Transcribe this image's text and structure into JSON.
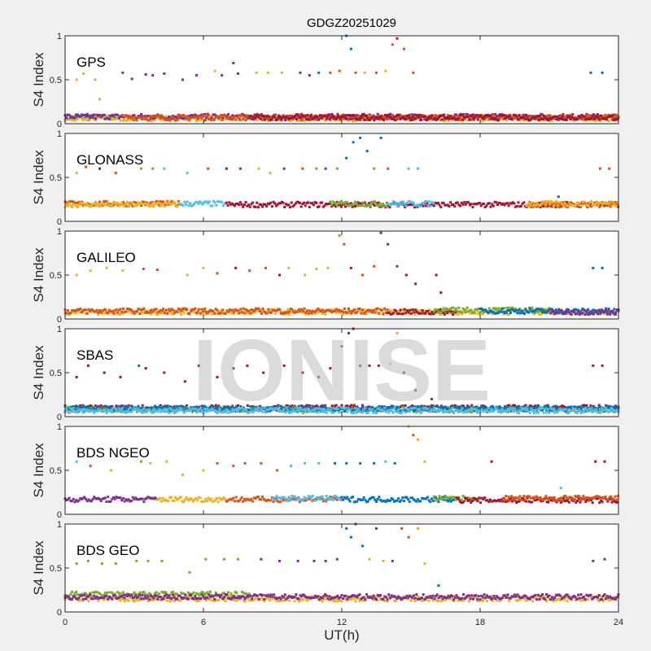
{
  "chart_data": {
    "type": "scatter",
    "title": "GDGZ20251029",
    "xlabel": "UT(h)",
    "ylabel": "S4 Index",
    "xlim": [
      0,
      24
    ],
    "ylim": [
      0,
      1
    ],
    "xticks": [
      "0",
      "6",
      "12",
      "18",
      "24"
    ],
    "yticks": [
      "0",
      "0.5",
      "1"
    ],
    "grid": false,
    "watermark": "IONISE",
    "palette": [
      "#0072BD",
      "#D95319",
      "#EDB120",
      "#7E2F8E",
      "#77AC30",
      "#4DBEEE",
      "#A2142F"
    ],
    "panels": [
      {
        "label": "GPS",
        "baseline": [
          [
            0,
            2.5,
            0.07,
            0
          ],
          [
            0,
            24,
            0.06,
            2
          ],
          [
            0,
            24,
            0.08,
            3
          ],
          [
            2.5,
            24,
            0.07,
            1
          ],
          [
            8,
            24,
            0.07,
            6
          ]
        ],
        "points": [
          [
            0.5,
            0.5,
            2
          ],
          [
            0.8,
            0.57,
            2
          ],
          [
            1.3,
            0.5,
            2
          ],
          [
            1.5,
            0.28,
            2
          ],
          [
            2.5,
            0.58,
            3
          ],
          [
            2.9,
            0.51,
            3
          ],
          [
            3.5,
            0.56,
            3
          ],
          [
            3.8,
            0.55,
            3
          ],
          [
            4.3,
            0.57,
            3
          ],
          [
            5.1,
            0.5,
            3
          ],
          [
            5.7,
            0.55,
            3
          ],
          [
            6.5,
            0.6,
            2
          ],
          [
            6.8,
            0.55,
            3
          ],
          [
            7.3,
            0.69,
            3
          ],
          [
            7.5,
            0.57,
            3
          ],
          [
            8.3,
            0.58,
            2
          ],
          [
            8.8,
            0.58,
            2
          ],
          [
            9.4,
            0.58,
            2
          ],
          [
            10.2,
            0.58,
            3
          ],
          [
            10.6,
            0.55,
            3
          ],
          [
            11.0,
            0.58,
            0
          ],
          [
            11.5,
            0.58,
            1
          ],
          [
            11.9,
            0.6,
            1
          ],
          [
            12.2,
            1.0,
            0
          ],
          [
            12.4,
            0.85,
            0
          ],
          [
            12.6,
            0.58,
            1
          ],
          [
            13.0,
            0.58,
            2
          ],
          [
            13.5,
            0.58,
            1
          ],
          [
            13.9,
            0.6,
            2
          ],
          [
            14.2,
            0.9,
            1
          ],
          [
            14.4,
            0.97,
            6
          ],
          [
            14.7,
            0.85,
            1
          ],
          [
            15.1,
            0.58,
            1
          ],
          [
            22.8,
            0.58,
            0
          ],
          [
            23.3,
            0.58,
            0
          ]
        ]
      },
      {
        "label": "GLONASS",
        "baseline": [
          [
            0,
            5,
            0.2,
            1
          ],
          [
            0,
            5,
            0.19,
            2
          ],
          [
            5,
            7,
            0.2,
            5
          ],
          [
            7,
            24,
            0.19,
            6
          ],
          [
            11.5,
            14,
            0.2,
            4
          ],
          [
            14,
            16,
            0.2,
            5
          ],
          [
            20,
            24,
            0.19,
            1
          ],
          [
            20,
            24,
            0.2,
            2
          ]
        ],
        "points": [
          [
            0.5,
            0.55,
            2
          ],
          [
            0.9,
            0.62,
            1
          ],
          [
            1.5,
            0.6,
            6
          ],
          [
            2.2,
            0.55,
            1
          ],
          [
            3.3,
            0.6,
            4
          ],
          [
            3.8,
            0.6,
            4
          ],
          [
            4.3,
            0.6,
            5
          ],
          [
            5.3,
            0.55,
            5
          ],
          [
            6.2,
            0.6,
            1
          ],
          [
            7.0,
            0.6,
            6
          ],
          [
            7.6,
            0.6,
            3
          ],
          [
            8.4,
            0.6,
            2
          ],
          [
            8.9,
            0.55,
            2
          ],
          [
            9.5,
            0.6,
            3
          ],
          [
            10.3,
            0.6,
            1
          ],
          [
            10.9,
            0.6,
            4
          ],
          [
            11.3,
            0.6,
            3
          ],
          [
            11.8,
            0.6,
            4
          ],
          [
            12.2,
            0.72,
            0
          ],
          [
            12.5,
            0.9,
            0
          ],
          [
            12.8,
            0.95,
            0
          ],
          [
            13.1,
            0.8,
            0
          ],
          [
            13.4,
            0.6,
            4
          ],
          [
            13.7,
            0.95,
            0
          ],
          [
            14.0,
            0.6,
            1
          ],
          [
            14.9,
            0.6,
            5
          ],
          [
            15.3,
            0.6,
            5
          ],
          [
            21.4,
            0.28,
            0
          ],
          [
            23.2,
            0.6,
            1
          ],
          [
            23.6,
            0.6,
            1
          ]
        ]
      },
      {
        "label": "GALILEO",
        "baseline": [
          [
            0,
            24,
            0.08,
            2
          ],
          [
            0,
            14,
            0.09,
            1
          ],
          [
            14,
            17,
            0.08,
            6
          ],
          [
            16,
            21,
            0.1,
            4
          ],
          [
            18,
            24,
            0.09,
            0
          ],
          [
            21,
            24,
            0.08,
            3
          ]
        ],
        "points": [
          [
            0.5,
            0.5,
            2
          ],
          [
            1.1,
            0.55,
            2
          ],
          [
            1.8,
            0.58,
            2
          ],
          [
            2.5,
            0.55,
            2
          ],
          [
            3.4,
            0.57,
            1
          ],
          [
            4.0,
            0.56,
            1
          ],
          [
            5.3,
            0.5,
            2
          ],
          [
            6.0,
            0.58,
            2
          ],
          [
            6.6,
            0.52,
            1
          ],
          [
            7.4,
            0.58,
            6
          ],
          [
            8.0,
            0.55,
            1
          ],
          [
            8.7,
            0.58,
            1
          ],
          [
            9.3,
            0.5,
            6
          ],
          [
            9.7,
            0.58,
            2
          ],
          [
            10.4,
            0.5,
            2
          ],
          [
            10.9,
            0.57,
            2
          ],
          [
            11.4,
            0.58,
            2
          ],
          [
            11.9,
            0.95,
            4
          ],
          [
            12.1,
            0.85,
            1
          ],
          [
            12.4,
            0.58,
            6
          ],
          [
            12.9,
            0.5,
            1
          ],
          [
            13.4,
            0.6,
            1
          ],
          [
            13.7,
            0.98,
            3
          ],
          [
            14.0,
            0.85,
            3
          ],
          [
            14.4,
            0.6,
            3
          ],
          [
            14.8,
            0.5,
            6
          ],
          [
            15.2,
            0.4,
            6
          ],
          [
            16.1,
            0.5,
            6
          ],
          [
            16.3,
            0.3,
            6
          ],
          [
            22.9,
            0.58,
            0
          ],
          [
            23.3,
            0.58,
            0
          ]
        ]
      },
      {
        "label": "SBAS",
        "baseline": [
          [
            0,
            24,
            0.1,
            6
          ],
          [
            0,
            24,
            0.08,
            4
          ],
          [
            0,
            24,
            0.09,
            0
          ],
          [
            0,
            24,
            0.07,
            5
          ]
        ],
        "points": [
          [
            0.5,
            0.45,
            6
          ],
          [
            1.0,
            0.58,
            6
          ],
          [
            1.7,
            0.5,
            6
          ],
          [
            2.4,
            0.45,
            6
          ],
          [
            3.2,
            0.58,
            0
          ],
          [
            3.5,
            0.55,
            6
          ],
          [
            4.3,
            0.5,
            6
          ],
          [
            5.2,
            0.4,
            6
          ],
          [
            5.8,
            0.58,
            6
          ],
          [
            6.6,
            0.45,
            6
          ],
          [
            7.3,
            0.55,
            6
          ],
          [
            7.9,
            0.58,
            6
          ],
          [
            8.6,
            0.5,
            6
          ],
          [
            9.5,
            0.58,
            6
          ],
          [
            10.3,
            0.5,
            6
          ],
          [
            11.0,
            0.45,
            6
          ],
          [
            11.5,
            0.55,
            6
          ],
          [
            12.0,
            0.8,
            3
          ],
          [
            12.3,
            0.95,
            3
          ],
          [
            12.5,
            1.0,
            6
          ],
          [
            12.8,
            0.58,
            6
          ],
          [
            13.2,
            0.58,
            6
          ],
          [
            13.6,
            0.58,
            6
          ],
          [
            14.1,
            0.6,
            2
          ],
          [
            14.4,
            0.95,
            2
          ],
          [
            14.7,
            0.5,
            6
          ],
          [
            15.2,
            0.3,
            6
          ],
          [
            15.9,
            0.2,
            3
          ],
          [
            22.9,
            0.58,
            6
          ],
          [
            23.3,
            0.58,
            6
          ]
        ]
      },
      {
        "label": "BDS NGEO",
        "baseline": [
          [
            0,
            4,
            0.17,
            3
          ],
          [
            4,
            7,
            0.17,
            2
          ],
          [
            7,
            12,
            0.17,
            1
          ],
          [
            9,
            12,
            0.18,
            5
          ],
          [
            12,
            17,
            0.17,
            0
          ],
          [
            16,
            18,
            0.18,
            4
          ],
          [
            17,
            24,
            0.16,
            6
          ],
          [
            19,
            24,
            0.18,
            1
          ]
        ],
        "points": [
          [
            0.5,
            0.6,
            5
          ],
          [
            1.1,
            0.55,
            1
          ],
          [
            2.0,
            0.5,
            2
          ],
          [
            3.3,
            0.6,
            4
          ],
          [
            3.7,
            0.58,
            2
          ],
          [
            4.4,
            0.6,
            2
          ],
          [
            5.1,
            0.45,
            2
          ],
          [
            6.0,
            0.5,
            2
          ],
          [
            6.6,
            0.58,
            1
          ],
          [
            7.3,
            0.55,
            1
          ],
          [
            7.8,
            0.58,
            1
          ],
          [
            8.5,
            0.58,
            1
          ],
          [
            9.2,
            0.5,
            1
          ],
          [
            9.8,
            0.55,
            5
          ],
          [
            10.4,
            0.58,
            5
          ],
          [
            11.0,
            0.58,
            5
          ],
          [
            11.7,
            0.58,
            0
          ],
          [
            12.2,
            0.58,
            0
          ],
          [
            12.8,
            0.58,
            0
          ],
          [
            13.4,
            0.58,
            0
          ],
          [
            13.9,
            0.6,
            5
          ],
          [
            14.3,
            0.58,
            0
          ],
          [
            14.9,
            1.0,
            2
          ],
          [
            15.1,
            0.9,
            1
          ],
          [
            15.3,
            0.85,
            2
          ],
          [
            15.6,
            0.6,
            2
          ],
          [
            18.5,
            0.6,
            6
          ],
          [
            21.5,
            0.3,
            5
          ],
          [
            23.0,
            0.6,
            6
          ],
          [
            23.4,
            0.6,
            6
          ]
        ]
      },
      {
        "label": "BDS GEO",
        "baseline": [
          [
            0,
            8,
            0.2,
            4
          ],
          [
            0,
            24,
            0.15,
            2
          ],
          [
            0,
            24,
            0.17,
            3
          ]
        ],
        "points": [
          [
            0.5,
            0.55,
            4
          ],
          [
            1.0,
            0.58,
            4
          ],
          [
            1.6,
            0.55,
            4
          ],
          [
            2.2,
            0.55,
            4
          ],
          [
            3.1,
            0.58,
            4
          ],
          [
            3.6,
            0.58,
            4
          ],
          [
            4.2,
            0.58,
            4
          ],
          [
            5.4,
            0.45,
            4
          ],
          [
            6.1,
            0.6,
            4
          ],
          [
            6.9,
            0.6,
            4
          ],
          [
            7.5,
            0.6,
            4
          ],
          [
            8.5,
            0.6,
            3
          ],
          [
            9.3,
            0.58,
            3
          ],
          [
            10.1,
            0.58,
            3
          ],
          [
            10.8,
            0.58,
            3
          ],
          [
            11.3,
            0.58,
            3
          ],
          [
            11.8,
            0.6,
            3
          ],
          [
            12.2,
            0.95,
            0
          ],
          [
            12.4,
            0.85,
            0
          ],
          [
            12.6,
            1.0,
            3
          ],
          [
            12.9,
            0.75,
            0
          ],
          [
            13.2,
            0.6,
            2
          ],
          [
            13.5,
            0.95,
            3
          ],
          [
            13.8,
            0.58,
            2
          ],
          [
            14.2,
            0.58,
            3
          ],
          [
            14.6,
            0.95,
            1
          ],
          [
            14.9,
            0.85,
            1
          ],
          [
            15.3,
            0.95,
            2
          ],
          [
            15.6,
            0.55,
            2
          ],
          [
            16.2,
            0.3,
            0
          ],
          [
            22.9,
            0.58,
            3
          ],
          [
            23.4,
            0.6,
            3
          ]
        ]
      }
    ]
  }
}
